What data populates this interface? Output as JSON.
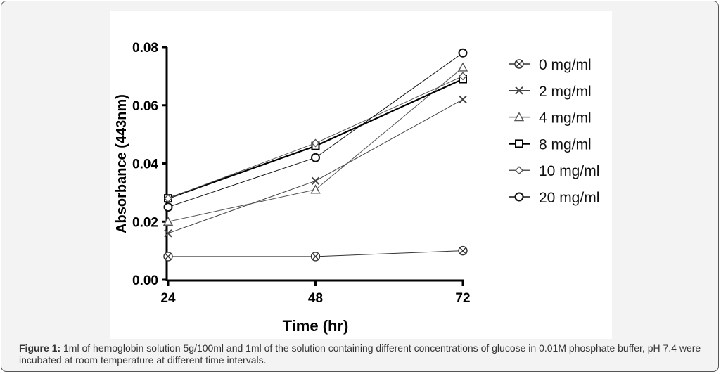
{
  "chart_data": {
    "type": "line",
    "xlabel": "Time (hr)",
    "ylabel": "Absorbance (443nm)",
    "x": [
      24,
      48,
      72
    ],
    "x_tick_labels": [
      "24",
      "48",
      "72"
    ],
    "ylim": [
      0,
      0.08
    ],
    "y_tick_labels": [
      "0.00",
      "0.02",
      "0.04",
      "0.06",
      "0.08"
    ],
    "grid": false,
    "legend_position": "right",
    "series": [
      {
        "name": "0 mg/ml",
        "marker": "circle-x",
        "values": [
          0.008,
          0.008,
          0.01
        ],
        "color": "#333333"
      },
      {
        "name": "2 mg/ml",
        "marker": "x",
        "values": [
          0.016,
          0.034,
          0.062
        ],
        "color": "#444444"
      },
      {
        "name": "4 mg/ml",
        "marker": "triangle",
        "values": [
          0.02,
          0.031,
          0.073
        ],
        "color": "#555555"
      },
      {
        "name": "8 mg/ml",
        "marker": "square",
        "values": [
          0.028,
          0.046,
          0.069
        ],
        "color": "#000000"
      },
      {
        "name": "10 mg/ml",
        "marker": "diamond",
        "values": [
          0.028,
          0.047,
          0.07
        ],
        "color": "#555555"
      },
      {
        "name": "20 mg/ml",
        "marker": "circle",
        "values": [
          0.025,
          0.042,
          0.078
        ],
        "color": "#111111"
      }
    ]
  },
  "caption": {
    "label": "Figure 1:",
    "text": " 1ml of hemoglobin solution 5g/100ml and 1ml of the solution containing different concentrations of glucose in 0.01M phosphate buffer, pH 7.4 were incubated at room temperature at different time intervals."
  }
}
